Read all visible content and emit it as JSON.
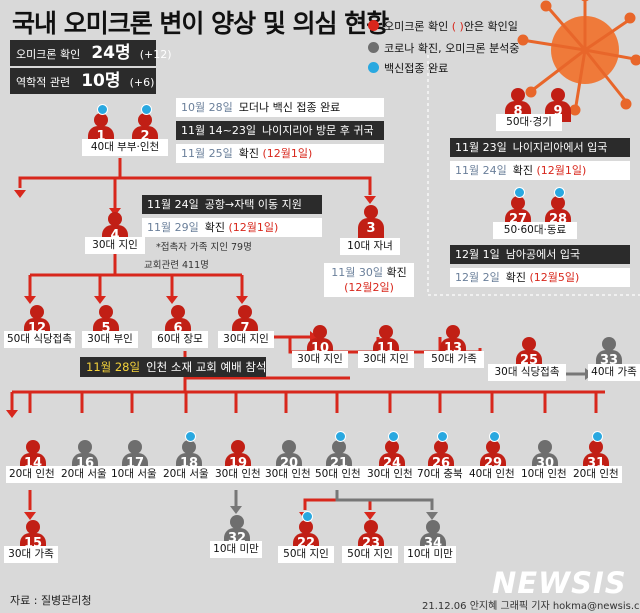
{
  "title": "국내 오미크론 변이 양상 및 의심 현황",
  "summary": [
    {
      "label": "오미크론 확인",
      "value": "24명",
      "change": "(+12)"
    },
    {
      "label": "역학적 관련",
      "value": "10명",
      "change": "(+6)"
    }
  ],
  "legend": [
    {
      "marker": "red-dot",
      "color": "#d8271c",
      "text_before": "오미크론 확인 ",
      "paren": "( )",
      "text_after": "안은 확인일"
    },
    {
      "marker": "gray-dot",
      "color": "#6e6e6e",
      "text": "코로나 확진, 오미크론 분석중"
    },
    {
      "marker": "blue-dot",
      "color": "#29a8e0",
      "text": "백신접종 완료"
    }
  ],
  "colors": {
    "confirmed": "#c11f15",
    "analyzing": "#6e6e6e",
    "vaccinated": "#29a8e0",
    "line": "#d8271c",
    "bg": "#d9d9d9"
  },
  "timeline": [
    {
      "style": "white",
      "date": "10월 28일",
      "text": "모더나 백신 접종 완료"
    },
    {
      "style": "dark",
      "date": "11월 14~23일",
      "text": "나이지리아 방문 후 귀국"
    },
    {
      "style": "white",
      "date": "11월 25일",
      "text": "확진",
      "red": "(12월1일)"
    },
    {
      "style": "dark",
      "date": "11월 24일",
      "text": "공항→자택 이동 지원"
    },
    {
      "style": "white",
      "date": "11월 29일",
      "text": "확진",
      "red": "(12월1일)"
    },
    {
      "style": "dark",
      "date": "11월 23일",
      "text": "나이지리아에서 입국"
    },
    {
      "style": "white",
      "date": "11월 24일",
      "text": "확진",
      "red": "(12월1일)"
    },
    {
      "style": "dark",
      "date": "12월 1일",
      "text": "남아공에서 입국"
    },
    {
      "style": "white",
      "date": "12월 2일",
      "text": "확진",
      "red": "(12월5일)"
    }
  ],
  "case3_note": {
    "date": "11월 30일",
    "text": "확진",
    "red": "(12월2일)"
  },
  "contacts_note": [
    "*접촉자 가족 지인 79명",
    "교회관련 411명"
  ],
  "church_event": {
    "date": "11월 28일",
    "text": "인천 소재 교회 예배 참석"
  },
  "cases": [
    {
      "id": "1",
      "status": "confirmed",
      "mark": "blue"
    },
    {
      "id": "2",
      "status": "confirmed",
      "mark": "blue"
    },
    {
      "id": "4",
      "status": "confirmed"
    },
    {
      "id": "3",
      "status": "confirmed"
    },
    {
      "id": "8",
      "status": "confirmed"
    },
    {
      "id": "9",
      "status": "confirmed"
    },
    {
      "id": "27",
      "status": "confirmed",
      "mark": "blue"
    },
    {
      "id": "28",
      "status": "confirmed",
      "mark": "blue"
    },
    {
      "id": "12",
      "status": "confirmed"
    },
    {
      "id": "5",
      "status": "confirmed"
    },
    {
      "id": "6",
      "status": "confirmed"
    },
    {
      "id": "7",
      "status": "confirmed"
    },
    {
      "id": "10",
      "status": "confirmed"
    },
    {
      "id": "11",
      "status": "confirmed"
    },
    {
      "id": "13",
      "status": "confirmed"
    },
    {
      "id": "25",
      "status": "confirmed"
    },
    {
      "id": "33",
      "status": "analyzing"
    },
    {
      "id": "14",
      "status": "confirmed"
    },
    {
      "id": "16",
      "status": "analyzing"
    },
    {
      "id": "17",
      "status": "analyzing"
    },
    {
      "id": "18",
      "status": "analyzing",
      "mark": "blue"
    },
    {
      "id": "19",
      "status": "confirmed"
    },
    {
      "id": "20",
      "status": "analyzing"
    },
    {
      "id": "21",
      "status": "analyzing",
      "mark": "blue"
    },
    {
      "id": "24",
      "status": "confirmed",
      "mark": "blue"
    },
    {
      "id": "26",
      "status": "confirmed",
      "mark": "blue"
    },
    {
      "id": "29",
      "status": "confirmed",
      "mark": "blue"
    },
    {
      "id": "30",
      "status": "analyzing"
    },
    {
      "id": "31",
      "status": "confirmed",
      "mark": "blue"
    },
    {
      "id": "15",
      "status": "confirmed"
    },
    {
      "id": "32",
      "status": "analyzing"
    },
    {
      "id": "22",
      "status": "confirmed",
      "mark": "blue"
    },
    {
      "id": "23",
      "status": "confirmed"
    },
    {
      "id": "34",
      "status": "analyzing"
    }
  ],
  "captions": [
    "40대 부부·인천",
    "30대 지인",
    "10대 자녀",
    "50대·경기",
    "50·60대·동료",
    "50대 식당접촉",
    "30대 부인",
    "60대 장모",
    "30대 지인",
    "30대 지인",
    "30대 지인",
    "50대 가족",
    "30대 식당접촉",
    "40대 가족",
    "20대 인천",
    "20대 서울",
    "10대 서울",
    "20대 서울",
    "30대 인천",
    "30대 인천",
    "50대 인천",
    "30대 인천",
    "70대 충북",
    "40대 인천",
    "10대 인천",
    "20대 인천",
    "30대 가족",
    "10대 미만",
    "50대 지인",
    "50대 지인",
    "10대 미만"
  ],
  "source": "자료 : 질병관리청",
  "credit": "21.12.06 안지혜 그래픽 기자 hokma@newsis.com",
  "logo": "NEWSIS"
}
